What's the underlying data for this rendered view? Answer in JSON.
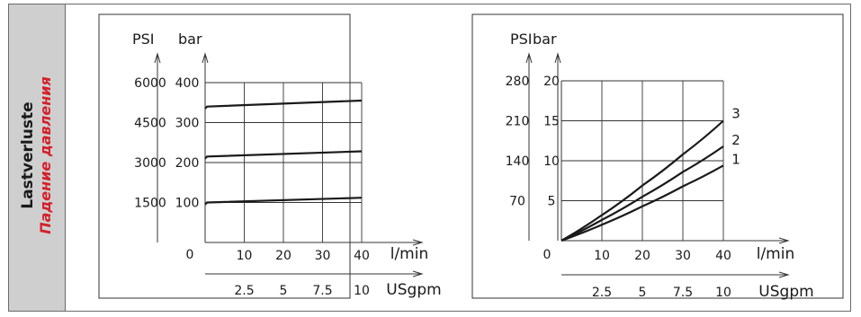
{
  "sidebar": {
    "title_de": "Lastverluste",
    "title_ru": "Падение давления",
    "title_ru_color": "#d4202b",
    "background": "#cfcfcf"
  },
  "chart_data": [
    {
      "type": "line",
      "title": "",
      "ylabel_left": "PSI",
      "ylabel_right": "bar",
      "xlabel_primary": "l/min",
      "xlabel_secondary": "USgpm",
      "x_ticks": [
        10,
        20,
        30,
        40
      ],
      "x_secondary_ticks": [
        "2.5",
        "5",
        "7.5",
        "10"
      ],
      "x_secondary_values": [
        2.5,
        5,
        7.5,
        10
      ],
      "xlim": [
        0,
        40
      ],
      "y_psi_ticks": [
        "6000",
        "4500",
        "3000",
        "1500"
      ],
      "y_psi_values": [
        6000,
        4500,
        3000,
        1500
      ],
      "y_bar_ticks": [
        "400",
        "300",
        "200",
        "100"
      ],
      "y_bar_values": [
        400,
        300,
        200,
        100
      ],
      "ylim": [
        0,
        400
      ],
      "origin_label": "0",
      "grid": true,
      "series": [
        {
          "x": [
            0,
            0.5,
            40
          ],
          "y": [
            95,
            100,
            112
          ]
        },
        {
          "x": [
            0,
            0.5,
            40
          ],
          "y": [
            210,
            215,
            228
          ]
        },
        {
          "x": [
            0,
            0.5,
            40
          ],
          "y": [
            335,
            340,
            355
          ]
        }
      ]
    },
    {
      "type": "line",
      "title": "",
      "ylabel_left": "PSI",
      "ylabel_right": "bar",
      "xlabel_primary": "l/min",
      "xlabel_secondary": "USgpm",
      "x_ticks": [
        10,
        20,
        30,
        40
      ],
      "x_secondary_ticks": [
        "2.5",
        "5",
        "7.5",
        "10"
      ],
      "x_secondary_values": [
        2.5,
        5,
        7.5,
        10
      ],
      "xlim": [
        0,
        40
      ],
      "y_psi_ticks": [
        "280",
        "210",
        "140",
        "70"
      ],
      "y_psi_values": [
        280,
        210,
        140,
        70
      ],
      "y_bar_ticks": [
        "20",
        "15",
        "10",
        "5"
      ],
      "y_bar_values": [
        20,
        15,
        10,
        5
      ],
      "ylim": [
        0,
        20
      ],
      "origin_label": "0",
      "grid": true,
      "series": [
        {
          "name": "1",
          "x": [
            0,
            10,
            20,
            30,
            40
          ],
          "y": [
            0,
            2.0,
            4.3,
            6.8,
            9.4
          ]
        },
        {
          "name": "2",
          "x": [
            0,
            10,
            20,
            30,
            40
          ],
          "y": [
            0,
            2.6,
            5.5,
            8.6,
            11.8
          ]
        },
        {
          "name": "3",
          "x": [
            0,
            10,
            20,
            30,
            40
          ],
          "y": [
            0,
            3.2,
            6.9,
            10.8,
            15.0
          ]
        }
      ]
    }
  ]
}
